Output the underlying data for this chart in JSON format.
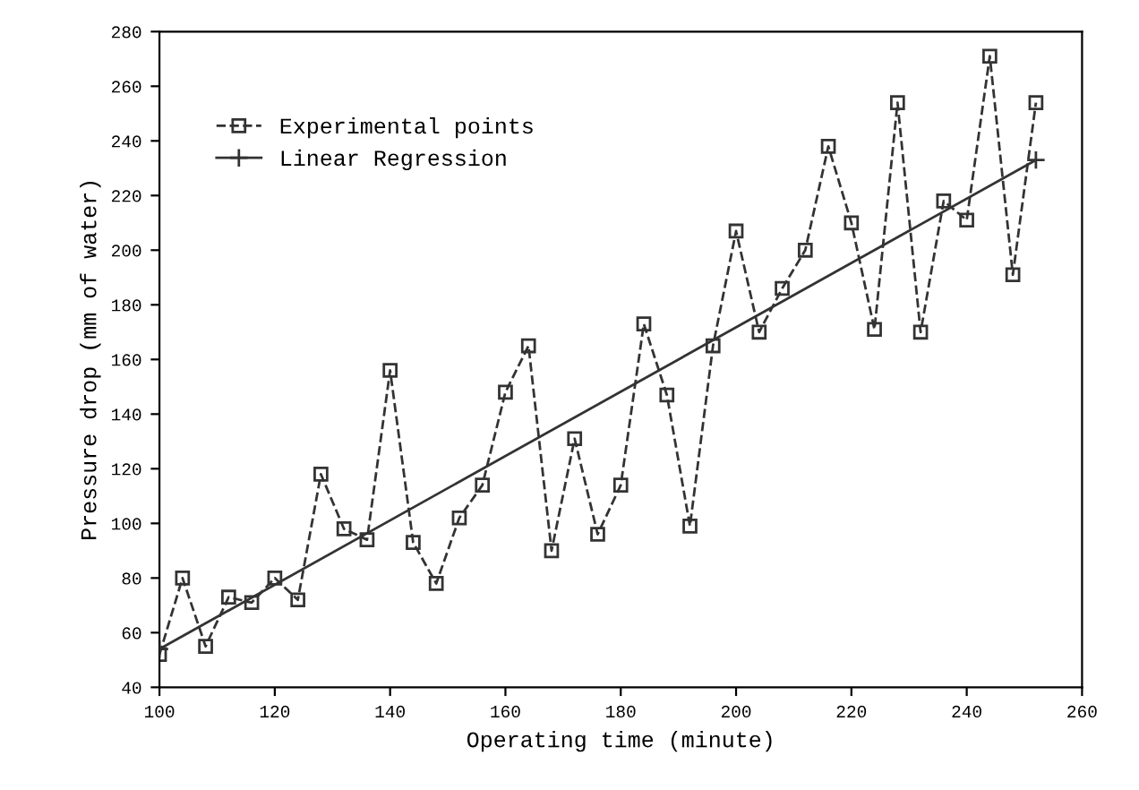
{
  "chart_data": {
    "type": "line",
    "xlabel": "Operating time (minute)",
    "ylabel": "Pressure drop (mm of water)",
    "xlim": [
      100,
      260
    ],
    "xticks": [
      100,
      120,
      140,
      160,
      180,
      200,
      220,
      240,
      260
    ],
    "ylim": [
      40,
      280
    ],
    "yticks": [
      40,
      60,
      80,
      100,
      120,
      140,
      160,
      180,
      200,
      220,
      240,
      260,
      280
    ],
    "grid": false,
    "legend": "top left",
    "series": [
      {
        "name": "Experimental points",
        "color": "#333333",
        "marker": "square",
        "line_style": "dashed",
        "x": [
          100,
          104,
          108,
          112,
          116,
          120,
          124,
          128,
          132,
          136,
          140,
          144,
          148,
          152,
          156,
          160,
          164,
          168,
          172,
          176,
          180,
          184,
          188,
          192,
          196,
          200,
          204,
          208,
          212,
          216,
          220,
          224,
          228,
          232,
          236,
          240,
          244,
          248,
          252
        ],
        "values": [
          52,
          80,
          55,
          73,
          71,
          80,
          72,
          118,
          98,
          94,
          156,
          93,
          78,
          102,
          114,
          148,
          165,
          90,
          131,
          96,
          114,
          173,
          147,
          99,
          165,
          207,
          170,
          186,
          200,
          238,
          210,
          171,
          254,
          170,
          218,
          211,
          271,
          191,
          254
        ]
      },
      {
        "name": "Linear Regression",
        "color": "#333333",
        "marker": "cross",
        "line_style": "solid",
        "x": [
          100,
          252
        ],
        "values": [
          54,
          233
        ]
      }
    ]
  }
}
